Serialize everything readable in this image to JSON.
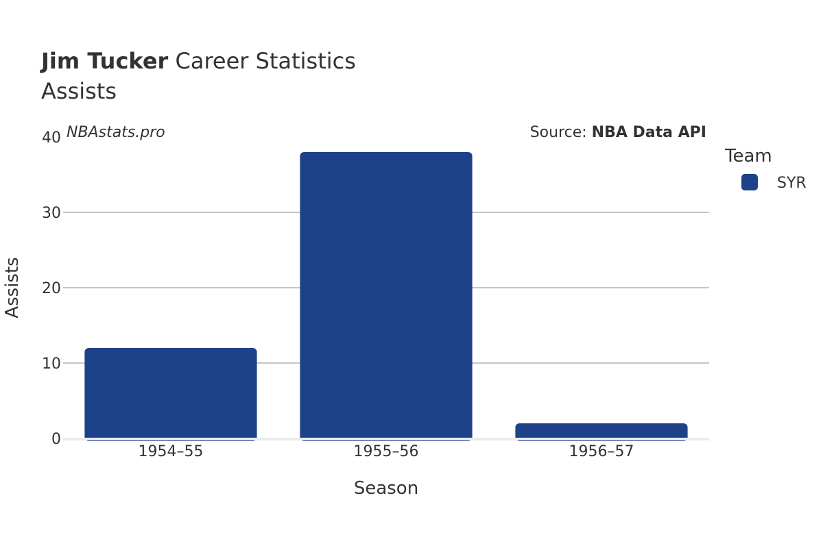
{
  "header": {
    "title_bold": "Jim Tucker",
    "title_rest": " Career Statistics",
    "subtitle": "Assists"
  },
  "watermark": "NBAstats.pro",
  "source": {
    "prefix": "Source: ",
    "name": "NBA Data API"
  },
  "legend": {
    "title": "Team",
    "items": [
      {
        "label": "SYR",
        "color": "#1d428a"
      }
    ]
  },
  "chart_data": {
    "type": "bar",
    "categories": [
      "1954–55",
      "1955–56",
      "1956–57"
    ],
    "series": [
      {
        "name": "SYR",
        "values": [
          12,
          38,
          2
        ],
        "color": "#1d428a"
      }
    ],
    "xlabel": "Season",
    "ylabel": "Assists",
    "ylim": [
      0,
      40
    ],
    "yticks": [
      0,
      10,
      20,
      30,
      40
    ],
    "grid": true,
    "legend_position": "right"
  }
}
